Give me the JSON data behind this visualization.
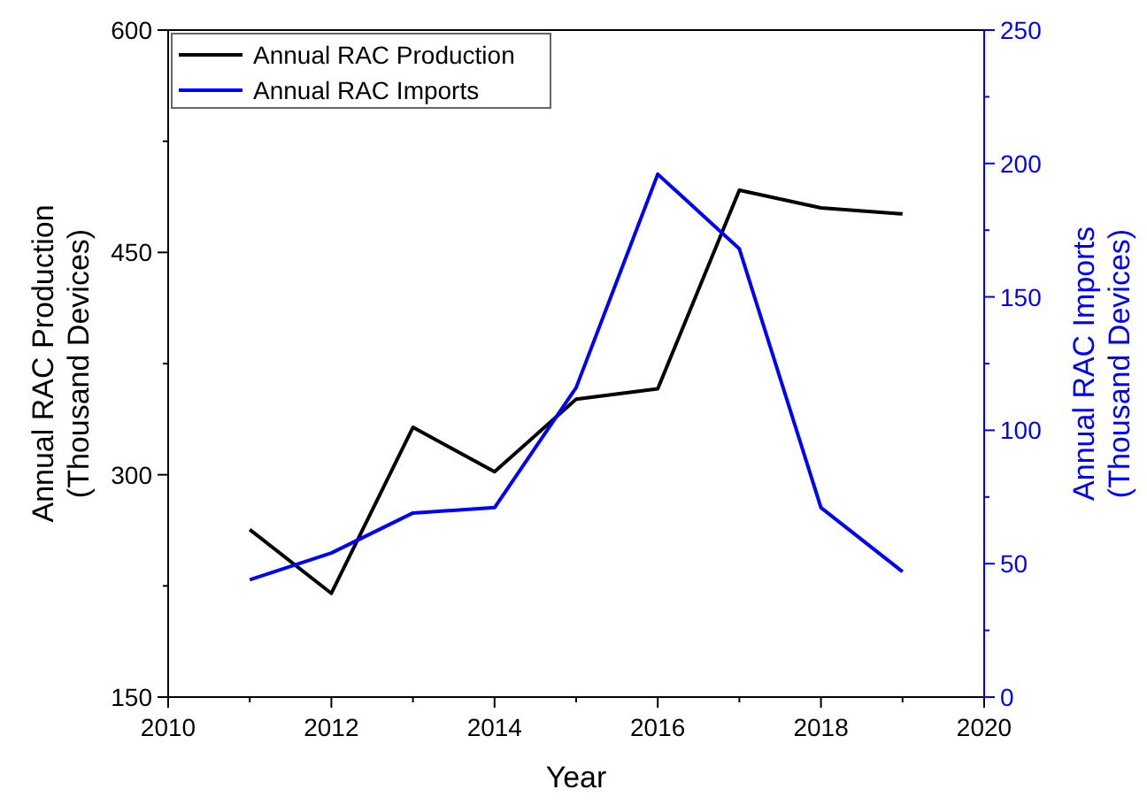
{
  "chart_data": {
    "type": "line",
    "xlabel": "Year",
    "ylabel": "Annual RAC Production\n(Thousand Devices)",
    "y2label": "Annual RAC Imports\n(Thousand Devices)",
    "x": [
      2011,
      2012,
      2013,
      2014,
      2015,
      2016,
      2017,
      2018,
      2019
    ],
    "series": [
      {
        "name": "Annual RAC Production",
        "color": "#000000",
        "values": [
          263,
          220,
          332,
          302,
          351,
          358,
          492,
          480,
          476
        ]
      },
      {
        "name": "Annual RAC Imports",
        "color": "#0000ff",
        "axis": "y2",
        "values": [
          44,
          54,
          69,
          71,
          116,
          196,
          168,
          71,
          47
        ]
      }
    ],
    "xlim": [
      2010,
      2020
    ],
    "xticks": [
      2010,
      {
        "value": 2011,
        "label": null
      },
      2012,
      {
        "value": 2013,
        "label": null
      },
      2014,
      {
        "value": 2015,
        "label": null
      },
      2016,
      {
        "value": 2017,
        "label": null
      },
      2018,
      {
        "value": 2019,
        "label": null
      },
      2020
    ],
    "ylim": [
      150,
      600
    ],
    "yticks": [
      150,
      {
        "value": 225,
        "label": null
      },
      300,
      {
        "value": 375,
        "label": null
      },
      450,
      {
        "value": 525,
        "label": null
      },
      600
    ],
    "y2lim": [
      0,
      250
    ],
    "y2ticks": [
      0,
      {
        "value": 25,
        "label": null
      },
      50,
      {
        "value": 75,
        "label": null
      },
      100,
      {
        "value": 125,
        "label": null
      },
      150,
      {
        "value": 175,
        "label": null
      },
      200,
      {
        "value": 225,
        "label": null
      },
      250
    ],
    "legend": "top left",
    "grid": false,
    "marker": "none",
    "line_style": "solid"
  }
}
